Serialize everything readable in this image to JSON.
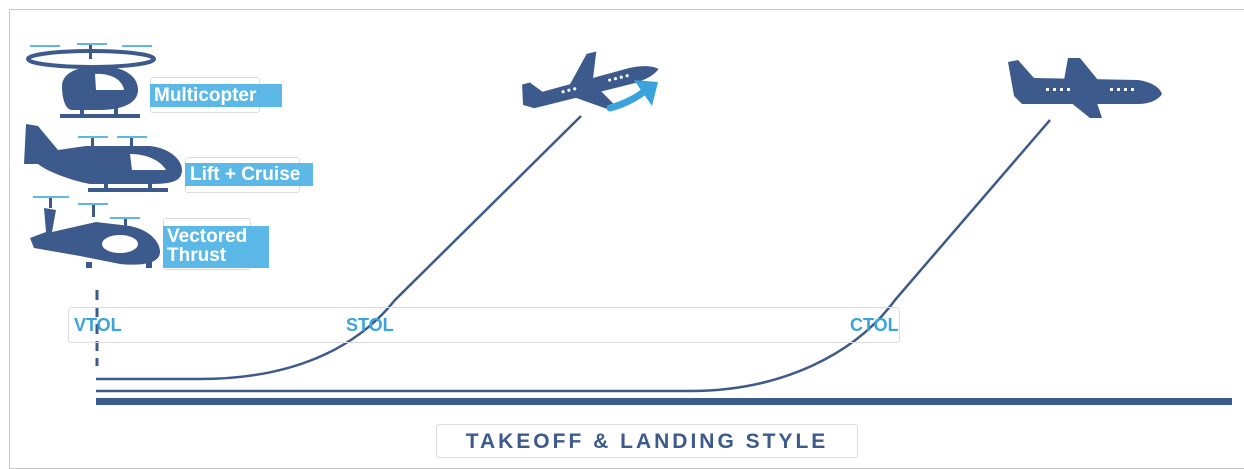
{
  "aircraft_types": [
    {
      "label": "Multicopter"
    },
    {
      "label": "Lift + Cruise"
    },
    {
      "label_lines": [
        "Vectored",
        "Thrust"
      ]
    }
  ],
  "stops": [
    {
      "label": "VTOL"
    },
    {
      "label": "STOL"
    },
    {
      "label": "CTOL"
    }
  ],
  "axis_title": "TAKEOFF & LANDING STYLE",
  "colors": {
    "navy": "#3d5a8c",
    "light_blue": "#5cb8e6",
    "accent_blue": "#3ba3dc",
    "border": "#c9c9c9"
  },
  "icons": [
    "multicopter-icon",
    "lift-cruise-icon",
    "vectored-thrust-icon",
    "stol-airplane-icon",
    "climb-arrow-icon",
    "ctol-airplane-icon"
  ]
}
